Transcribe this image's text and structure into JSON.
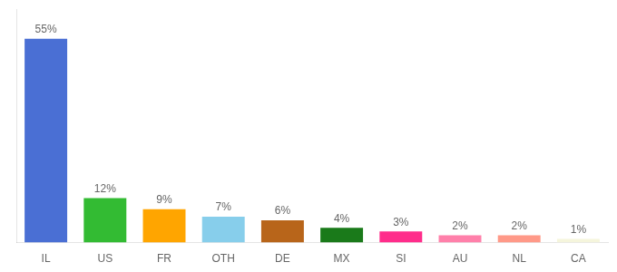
{
  "chart_data": {
    "type": "bar",
    "categories": [
      "IL",
      "US",
      "FR",
      "OTH",
      "DE",
      "MX",
      "SI",
      "AU",
      "NL",
      "CA"
    ],
    "values": [
      55,
      12,
      9,
      7,
      6,
      4,
      3,
      2,
      2,
      1
    ],
    "value_labels": [
      "55%",
      "12%",
      "9%",
      "7%",
      "6%",
      "4%",
      "3%",
      "2%",
      "2%",
      "1%"
    ],
    "colors": [
      "#4A6FD4",
      "#33BB33",
      "#FFA500",
      "#87CEEB",
      "#B8651A",
      "#1A7A1A",
      "#FF2D8B",
      "#FF80AA",
      "#FF9988",
      "#F5F5DC"
    ],
    "ylim": [
      0,
      63
    ],
    "grid": false,
    "tick_labels": "x"
  }
}
